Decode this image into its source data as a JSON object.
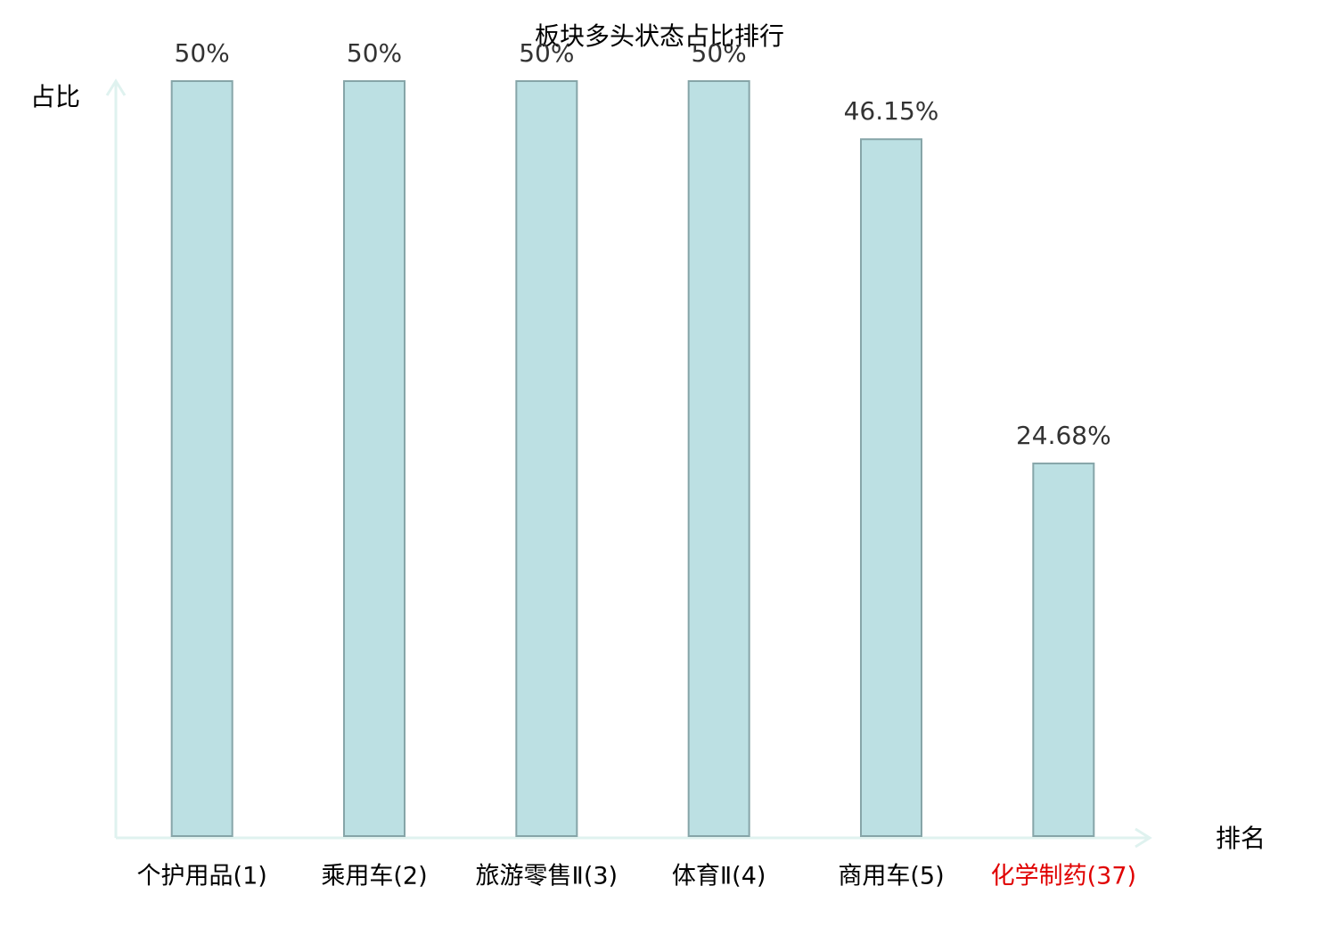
{
  "chart_data": {
    "type": "bar",
    "title": "板块多头状态占比排行",
    "y_label": "占比",
    "x_label": "排名",
    "categories": [
      "个护用品(1)",
      "乘用车(2)",
      "旅游零售Ⅱ(3)",
      "体育Ⅱ(4)",
      "商用车(5)",
      "化学制药(37)"
    ],
    "category_label_colors": [
      "#000000",
      "#000000",
      "#000000",
      "#000000",
      "#000000",
      "#e00000"
    ],
    "values": [
      50,
      50,
      50,
      50,
      46.15,
      24.68
    ],
    "value_labels": [
      "50%",
      "50%",
      "50%",
      "50%",
      "46.15%",
      "24.68%"
    ],
    "color": "#bce0e3",
    "edge_color": "#86a5a8",
    "axis_color": "#dff2ef",
    "ylim": [
      0,
      50
    ]
  }
}
